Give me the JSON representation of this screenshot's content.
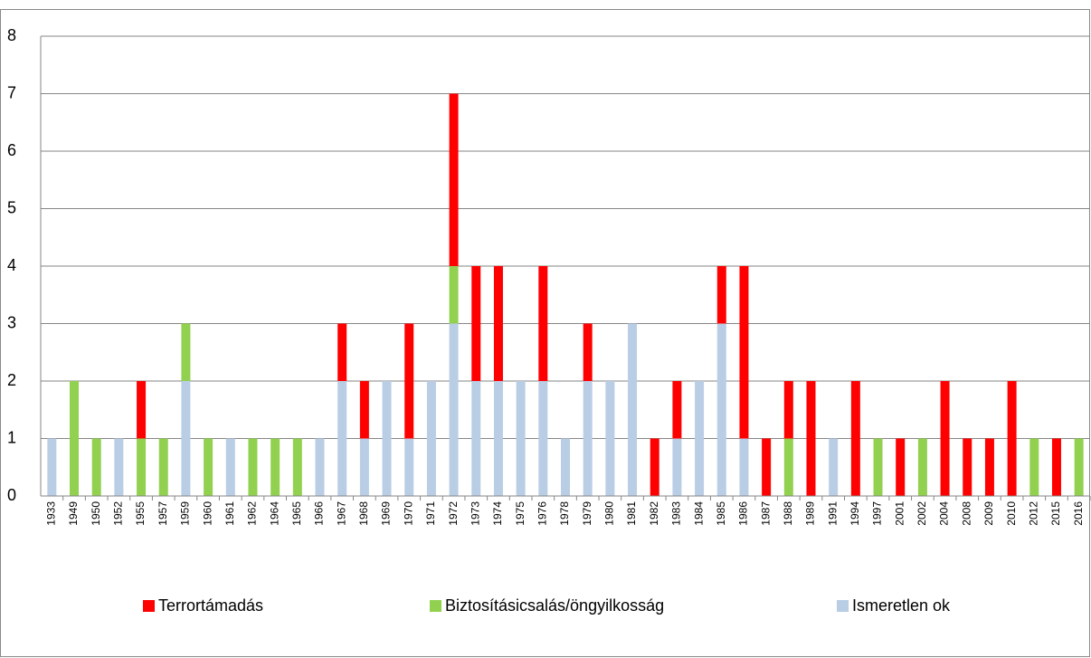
{
  "chart_data": {
    "type": "bar",
    "stacked": true,
    "categories": [
      "1933",
      "1949",
      "1950",
      "1952",
      "1955",
      "1957",
      "1959",
      "1960",
      "1961",
      "1962",
      "1964",
      "1965",
      "1966",
      "1967",
      "1968",
      "1969",
      "1970",
      "1971",
      "1972",
      "1973",
      "1974",
      "1975",
      "1976",
      "1978",
      "1979",
      "1980",
      "1981",
      "1982",
      "1983",
      "1984",
      "1985",
      "1986",
      "1987",
      "1988",
      "1989",
      "1991",
      "1994",
      "1997",
      "2001",
      "2002",
      "2004",
      "2008",
      "2009",
      "2010",
      "2012",
      "2015",
      "2016"
    ],
    "series": [
      {
        "name": "Terrortámadás",
        "color": "#ff0000",
        "values": [
          0,
          0,
          0,
          0,
          1,
          0,
          0,
          0,
          0,
          0,
          0,
          0,
          0,
          1,
          1,
          0,
          2,
          0,
          3,
          2,
          2,
          0,
          2,
          0,
          1,
          0,
          0,
          1,
          1,
          0,
          1,
          3,
          1,
          1,
          2,
          0,
          2,
          0,
          1,
          0,
          2,
          1,
          1,
          2,
          0,
          1,
          0
        ]
      },
      {
        "name": "Biztosításicsalás/öngyilkosság",
        "color": "#92d050",
        "values": [
          0,
          2,
          1,
          0,
          1,
          1,
          1,
          1,
          0,
          1,
          1,
          1,
          0,
          0,
          0,
          0,
          0,
          0,
          1,
          0,
          0,
          0,
          0,
          0,
          0,
          0,
          0,
          0,
          0,
          0,
          0,
          0,
          0,
          1,
          0,
          0,
          0,
          1,
          0,
          1,
          0,
          0,
          0,
          0,
          1,
          0,
          1
        ]
      },
      {
        "name": "Ismeretlen ok",
        "color": "#b9cde5",
        "values": [
          1,
          0,
          0,
          1,
          0,
          0,
          2,
          0,
          1,
          0,
          0,
          0,
          1,
          2,
          1,
          2,
          1,
          2,
          3,
          2,
          2,
          2,
          2,
          1,
          2,
          2,
          3,
          0,
          1,
          2,
          3,
          1,
          0,
          0,
          0,
          1,
          0,
          0,
          0,
          0,
          0,
          0,
          0,
          0,
          0,
          0,
          0
        ]
      }
    ],
    "ylim": [
      0,
      8
    ],
    "yticks": [
      0,
      1,
      2,
      3,
      4,
      5,
      6,
      7,
      8
    ],
    "grid": true,
    "legend": "bottom"
  }
}
